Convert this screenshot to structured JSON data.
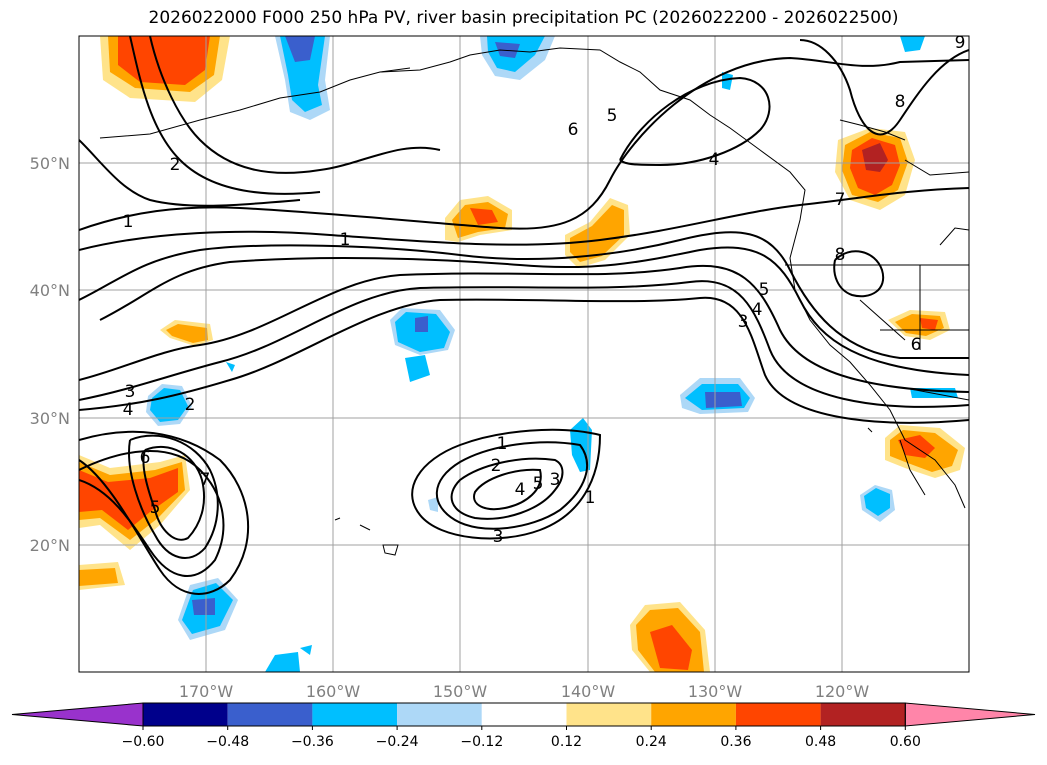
{
  "title": "2026022000 F000 250 hPa PV, river basin precipitation PC (2026022200 - 2026022500)",
  "map": {
    "lat_labels": [
      "50°N",
      "40°N",
      "30°N",
      "20°N"
    ],
    "lon_labels": [
      "170°W",
      "160°W",
      "150°W",
      "140°W",
      "130°W",
      "120°W"
    ],
    "grid": true,
    "contour_labels": [
      "1",
      "2",
      "1",
      "3",
      "4",
      "2",
      "6",
      "7",
      "5",
      "1",
      "2",
      "3",
      "4",
      "5",
      "3",
      "6",
      "5",
      "4",
      "7",
      "8",
      "8",
      "5",
      "4",
      "3",
      "6",
      "9",
      "1"
    ]
  },
  "colorbar": {
    "ticks": [
      "−0.60",
      "−0.48",
      "−0.36",
      "−0.24",
      "−0.12",
      "0.12",
      "0.24",
      "0.36",
      "0.48",
      "0.60"
    ],
    "colors": [
      "#9932cc",
      "#00008b",
      "#3a5fcd",
      "#00bfff",
      "#add8f7",
      "#ffffff",
      "#ffe38a",
      "#ffa500",
      "#ff4500",
      "#b22222",
      "#ff85a9"
    ]
  }
}
